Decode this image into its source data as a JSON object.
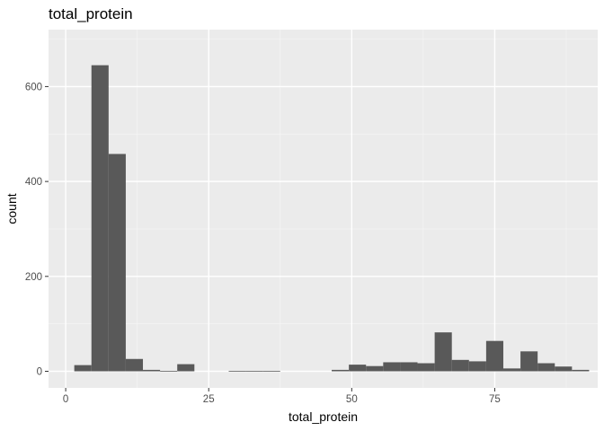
{
  "chart_data": {
    "type": "bar",
    "title": "total_protein",
    "xlabel": "total_protein",
    "ylabel": "count",
    "xlim": [
      -3,
      93
    ],
    "ylim": [
      -35,
      720
    ],
    "xticks": [
      0,
      25,
      50,
      75
    ],
    "xtick_labels": [
      "0",
      "25",
      "50",
      "75"
    ],
    "yticks": [
      0,
      200,
      400,
      600
    ],
    "ytick_labels": [
      "0",
      "200",
      "400",
      "600"
    ],
    "grid": true,
    "panel_background": "#ebebeb",
    "bar_color": "#595959",
    "bins": [
      {
        "x0": 1.5,
        "x1": 4.5,
        "count": 13
      },
      {
        "x0": 4.5,
        "x1": 7.5,
        "count": 645
      },
      {
        "x0": 7.5,
        "x1": 10.5,
        "count": 458
      },
      {
        "x0": 10.5,
        "x1": 13.5,
        "count": 26
      },
      {
        "x0": 13.5,
        "x1": 16.5,
        "count": 3
      },
      {
        "x0": 16.5,
        "x1": 19.5,
        "count": 1
      },
      {
        "x0": 19.5,
        "x1": 22.5,
        "count": 15
      },
      {
        "x0": 22.5,
        "x1": 25.5,
        "count": 0
      },
      {
        "x0": 25.5,
        "x1": 28.5,
        "count": 0
      },
      {
        "x0": 28.5,
        "x1": 31.5,
        "count": 1
      },
      {
        "x0": 31.5,
        "x1": 34.5,
        "count": 1
      },
      {
        "x0": 34.5,
        "x1": 37.5,
        "count": 1
      },
      {
        "x0": 37.5,
        "x1": 40.5,
        "count": 0
      },
      {
        "x0": 40.5,
        "x1": 43.5,
        "count": 0
      },
      {
        "x0": 43.5,
        "x1": 46.5,
        "count": 0
      },
      {
        "x0": 46.5,
        "x1": 49.5,
        "count": 3
      },
      {
        "x0": 49.5,
        "x1": 52.5,
        "count": 14
      },
      {
        "x0": 52.5,
        "x1": 55.5,
        "count": 11
      },
      {
        "x0": 55.5,
        "x1": 58.5,
        "count": 19
      },
      {
        "x0": 58.5,
        "x1": 61.5,
        "count": 19
      },
      {
        "x0": 61.5,
        "x1": 64.5,
        "count": 17
      },
      {
        "x0": 64.5,
        "x1": 67.5,
        "count": 82
      },
      {
        "x0": 67.5,
        "x1": 70.5,
        "count": 24
      },
      {
        "x0": 70.5,
        "x1": 73.5,
        "count": 21
      },
      {
        "x0": 73.5,
        "x1": 76.5,
        "count": 64
      },
      {
        "x0": 76.5,
        "x1": 79.5,
        "count": 6
      },
      {
        "x0": 79.5,
        "x1": 82.5,
        "count": 42
      },
      {
        "x0": 82.5,
        "x1": 85.5,
        "count": 17
      },
      {
        "x0": 85.5,
        "x1": 88.5,
        "count": 10
      },
      {
        "x0": 88.5,
        "x1": 91.5,
        "count": 3
      }
    ]
  }
}
